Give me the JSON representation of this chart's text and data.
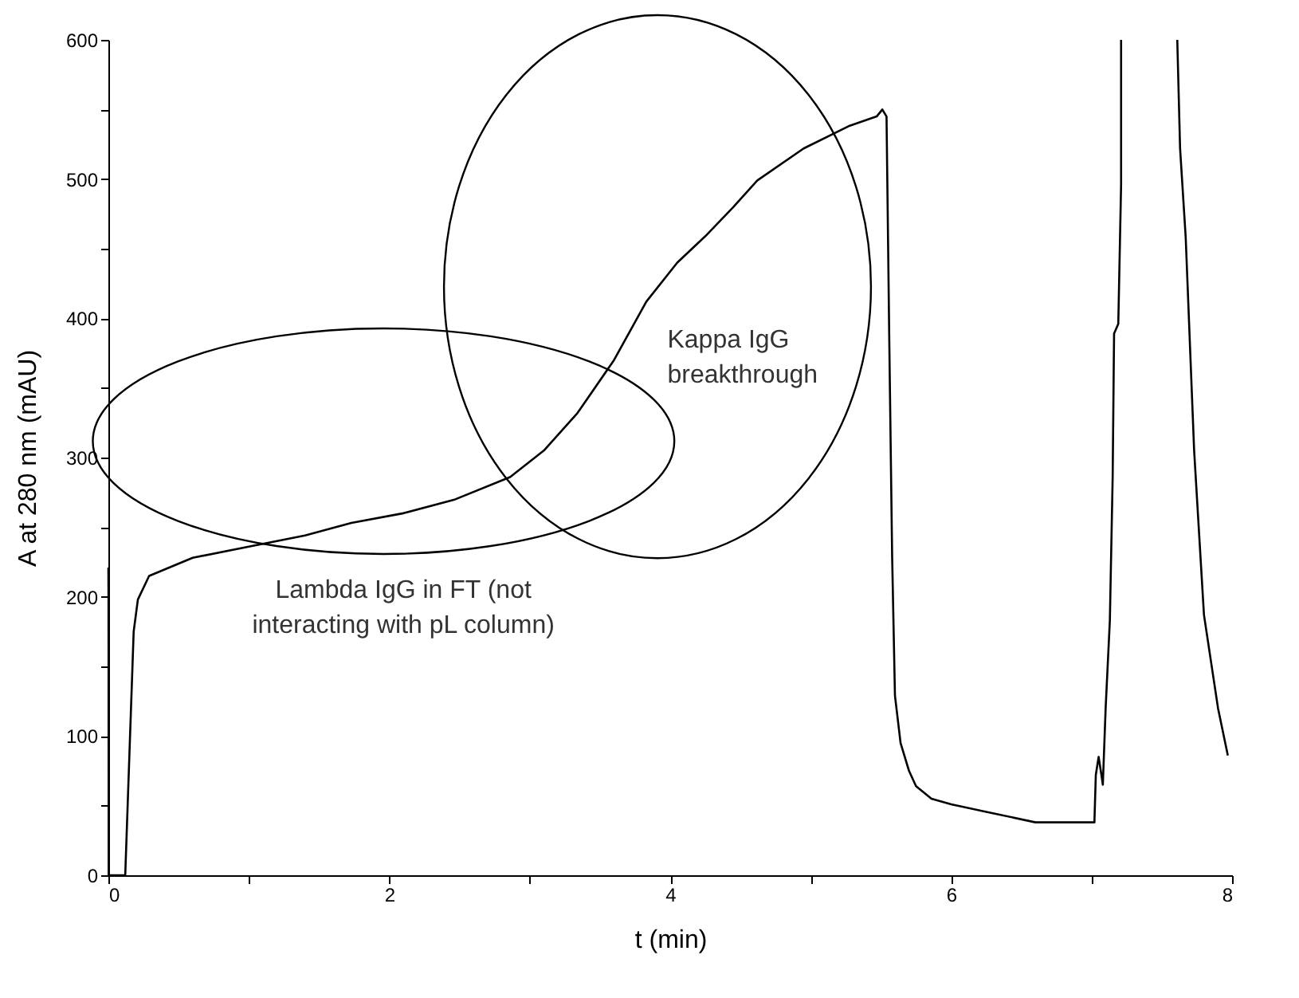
{
  "chart_data": {
    "type": "line",
    "xlabel": "t (min)",
    "ylabel": "A at 280 nm (mAU)",
    "x": [
      0,
      0.001,
      0.002,
      0.12,
      0.18,
      0.21,
      0.29,
      0.6,
      1.0,
      1.4,
      1.73,
      2.1,
      2.47,
      2.86,
      3.1,
      3.34,
      3.6,
      3.83,
      4.05,
      4.25,
      4.45,
      4.62,
      4.95,
      5.27,
      5.47,
      5.51,
      5.54,
      5.56,
      5.58,
      5.6,
      5.64,
      5.7,
      5.75,
      5.86,
      6.0,
      6.23,
      6.6,
      7.02,
      7.03,
      7.05,
      7.07,
      7.08,
      7.1,
      7.13,
      7.15,
      7.16,
      7.19,
      7.21,
      7.21,
      7.4,
      7.61,
      7.63,
      7.67,
      7.73,
      7.8,
      7.9,
      7.97
    ],
    "series": [
      {
        "color": "#000000",
        "values": [
          221,
          195,
          0,
          0,
          175,
          198,
          215,
          228,
          236,
          244,
          253,
          260,
          270,
          286,
          305,
          332,
          370,
          412,
          440,
          459,
          480,
          499,
          522,
          538,
          545,
          550,
          545,
          381,
          229,
          129,
          95,
          75,
          64,
          55,
          51,
          46,
          38,
          38,
          72,
          85,
          72,
          65,
          120,
          183,
          286,
          389,
          396,
          496,
          600,
          null,
          600,
          522,
          458,
          305,
          187,
          120,
          86
        ]
      }
    ],
    "xlim": [
      0,
      8
    ],
    "ylim": [
      0,
      600
    ],
    "xticks": [
      0,
      {
        "value": 1,
        "label": null
      },
      2,
      {
        "value": 3,
        "label": null
      },
      4,
      {
        "value": 5,
        "label": null
      },
      6,
      {
        "value": 7,
        "label": null
      },
      8
    ],
    "yticks": [
      0,
      {
        "value": 50,
        "label": null
      },
      100,
      {
        "value": 150,
        "label": null
      },
      200,
      {
        "value": 250,
        "label": null
      },
      300,
      {
        "value": 350,
        "label": null
      },
      400,
      {
        "value": 450,
        "label": null
      },
      500,
      {
        "value": 550,
        "label": null
      },
      600
    ],
    "grid": false,
    "legend": false,
    "marker": "none",
    "line_style": "solid",
    "annotations": [
      "Lambda IgG in FT (not interacting with pL column)",
      "Kappa IgG breakthrough"
    ]
  }
}
